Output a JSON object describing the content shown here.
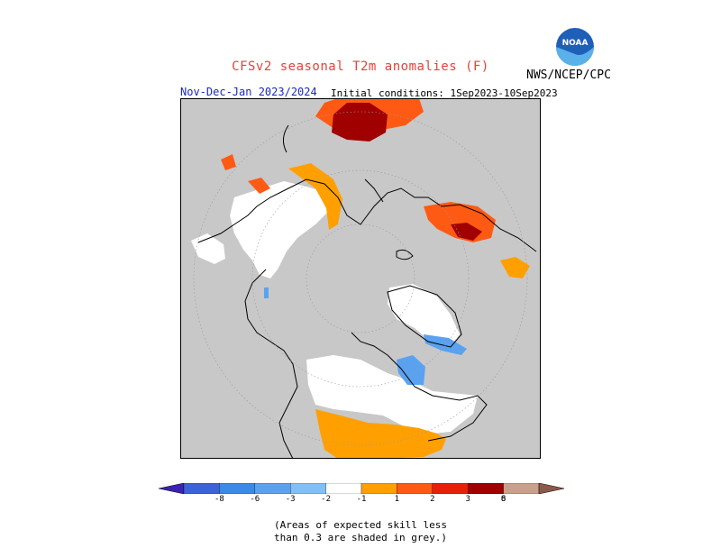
{
  "header": {
    "title": "CFSv2 seasonal T2m anomalies (F)",
    "agency": "NWS/NCEP/CPC",
    "logo_text": "NOAA",
    "period": "Nov-Dec-Jan 2023/2024",
    "initial_conditions": "Initial conditions: 1Sep2023-10Sep2023"
  },
  "legend": {
    "ticks": [
      "-8",
      "-6",
      "-3",
      "-2",
      "-1",
      "1",
      "2",
      "3",
      "6",
      "8"
    ],
    "colors": [
      "#3a23b0",
      "#3c62d8",
      "#3a8ae8",
      "#5aa2f0",
      "#80c0f8",
      "#ffffff",
      "#ffa000",
      "#ff5a14",
      "#e82008",
      "#a00000",
      "#c8a08c",
      "#8c5a4a"
    ]
  },
  "footnote": {
    "line1": "(Areas of expected skill less",
    "line2": "than 0.3 are shaded in grey.)"
  },
  "map": {
    "land_background": "#c8c8c8",
    "no_anomaly": "#ffffff"
  }
}
